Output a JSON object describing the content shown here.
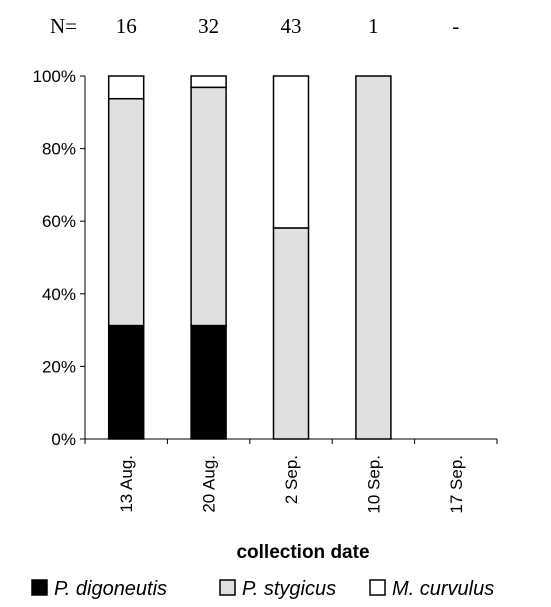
{
  "chart_data": {
    "type": "bar",
    "stacked": "percent",
    "n_label": "N=",
    "n_values": [
      "16",
      "32",
      "43",
      "1",
      "-"
    ],
    "categories": [
      "13 Aug.",
      "20 Aug.",
      "2 Sep.",
      "10 Sep.",
      "17 Sep."
    ],
    "series": [
      {
        "name": "P. digoneutis",
        "values": [
          31.25,
          31.25,
          0,
          0,
          0
        ],
        "color": "#000000"
      },
      {
        "name": "P. stygicus",
        "values": [
          62.5,
          65.63,
          58.14,
          100,
          0
        ],
        "color": "#e0e0e0"
      },
      {
        "name": "M. curvulus",
        "values": [
          6.25,
          3.12,
          41.86,
          0,
          0
        ],
        "color": "#ffffff"
      }
    ],
    "xlabel": "collection date",
    "ylabel": "",
    "ylim": [
      0,
      100
    ],
    "yticks": [
      "0%",
      "20%",
      "40%",
      "60%",
      "80%",
      "100%"
    ],
    "grid": false,
    "legend_position": "bottom"
  }
}
